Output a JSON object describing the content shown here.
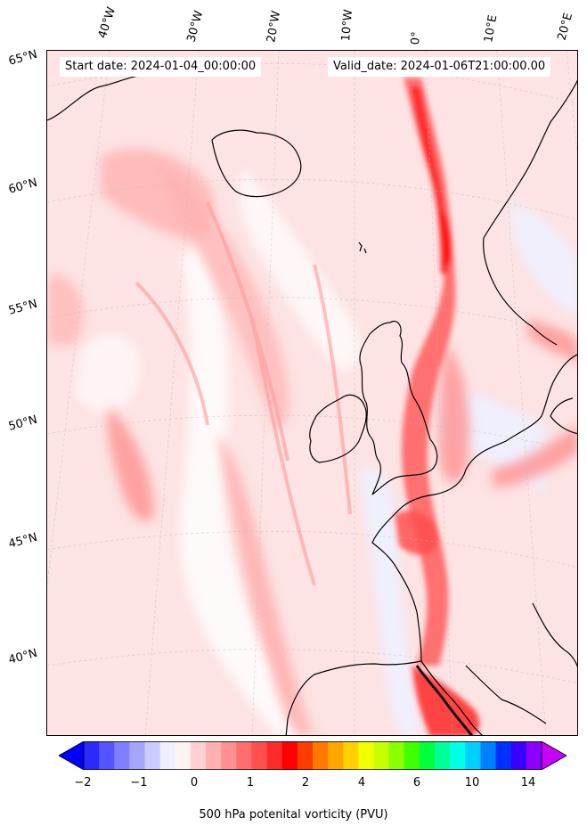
{
  "map": {
    "start_date": "Start date: 2024-01-04_00:00:00",
    "valid_date": "Valid_date: 2024-01-06T21:00:00.00",
    "longitude_labels": [
      "40°W",
      "30°W",
      "20°W",
      "10°W",
      "0°",
      "10°E",
      "20°E"
    ],
    "latitude_labels": [
      "65°N",
      "60°N",
      "55°N",
      "50°N",
      "45°N",
      "40°N"
    ],
    "colors": {
      "land_outline": "#000000",
      "background_pv": "#fde3e3",
      "high_pv": "#ff1a1a",
      "low_pv": "#eef0ff"
    }
  },
  "colorbar": {
    "label": "500 hPa potenital vorticity (PVU)",
    "tick_labels": [
      "−2",
      "−1",
      "0",
      "1",
      "2",
      "4",
      "6",
      "10",
      "14"
    ],
    "colors": [
      "#0000ff",
      "#2a2aff",
      "#5555ff",
      "#7f7fff",
      "#a5a5ff",
      "#cbcbff",
      "#eeeeff",
      "#fff2f2",
      "#ffd0d0",
      "#ffb0b0",
      "#ff9090",
      "#ff6d6d",
      "#ff4f4f",
      "#ff2b2b",
      "#ff0000",
      "#ff3c00",
      "#ff7800",
      "#ffa600",
      "#ffd000",
      "#f2ff00",
      "#c8ff00",
      "#8aff00",
      "#3fff00",
      "#00ff3c",
      "#00ff96",
      "#00ffe6",
      "#00d0ff",
      "#0080ff",
      "#0030ff",
      "#3800ff",
      "#8c00ff",
      "#c800ff"
    ]
  }
}
